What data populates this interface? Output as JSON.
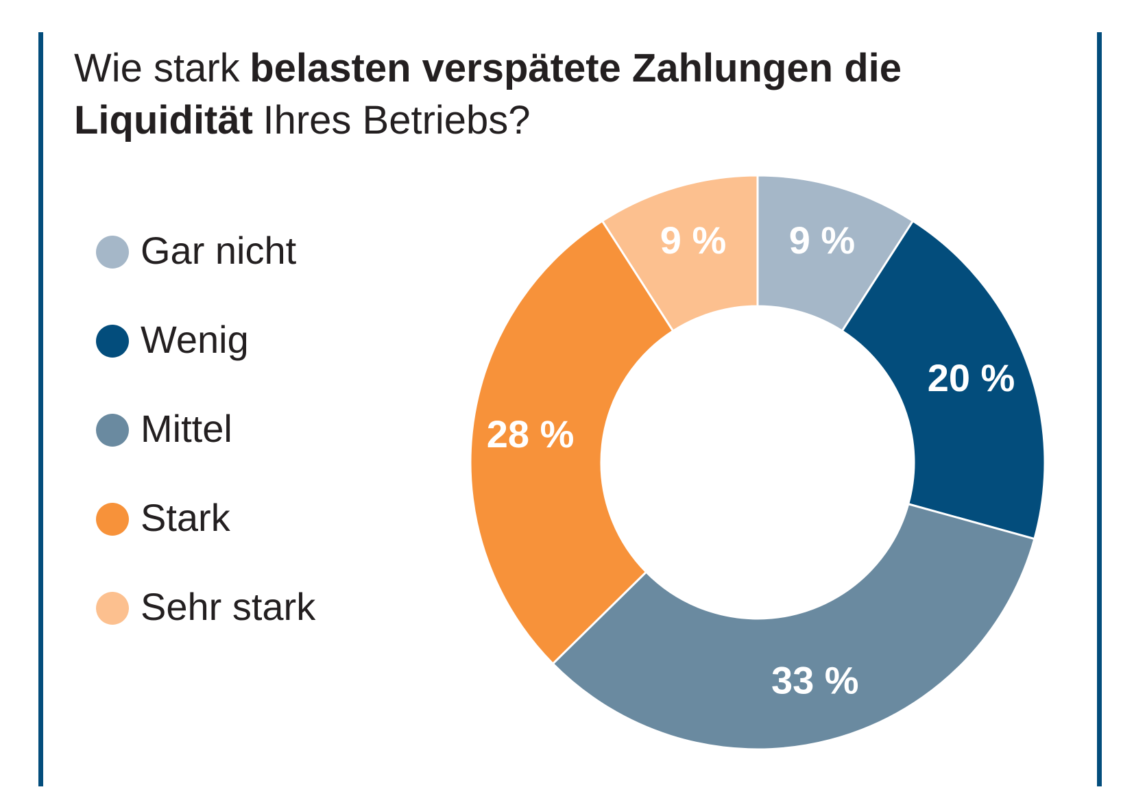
{
  "chart_data": {
    "type": "donut",
    "title_lines": [
      [
        {
          "text": "Wie stark",
          "bold": false
        },
        {
          "text": "belasten verspätete Zahlungen die",
          "bold": true
        }
      ],
      [
        {
          "text": "Liquidität",
          "bold": true
        },
        {
          "text": "Ihres Betriebs?",
          "bold": false
        }
      ]
    ],
    "categories": [
      "Gar nicht",
      "Wenig",
      "Mittel",
      "Stark",
      "Sehr stark"
    ],
    "values": [
      9,
      20,
      33,
      28,
      9
    ],
    "value_labels": [
      "9 %",
      "20 %",
      "33 %",
      "28 %",
      "9 %"
    ],
    "colors": [
      "#a5b7c8",
      "#034d7c",
      "#6a8aa0",
      "#f7923a",
      "#fcc08f"
    ],
    "legend": "left"
  }
}
